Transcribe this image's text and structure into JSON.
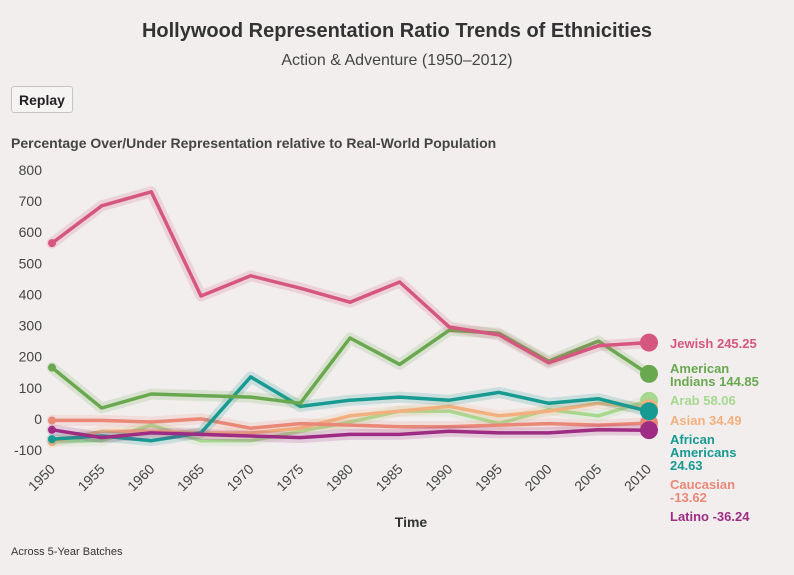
{
  "title": "Hollywood Representation Ratio Trends of Ethnicities",
  "subtitle": "Action & Adventure (1950–2012)",
  "replay_label": "Replay",
  "footnote": "Across 5-Year Batches",
  "chart_data": {
    "type": "line",
    "title": "Hollywood Representation Ratio Trends of Ethnicities",
    "subtitle": "Action & Adventure (1950–2012)",
    "xlabel": "Time",
    "ylabel": "Percentage Over/Under Representation relative to Real-World Population",
    "x": [
      1950,
      1955,
      1960,
      1965,
      1970,
      1975,
      1980,
      1985,
      1990,
      1995,
      2000,
      2005,
      2010
    ],
    "x_ticks": [
      "1950",
      "1955",
      "1960",
      "1965",
      "1970",
      "1975",
      "1980",
      "1985",
      "1990",
      "1995",
      "2000",
      "2005",
      "2010"
    ],
    "y_ticks": [
      "800",
      "700",
      "600",
      "500",
      "400",
      "300",
      "200",
      "100",
      "0",
      "-100"
    ],
    "ylim": [
      -100,
      800
    ],
    "grid": false,
    "legend": "end-of-line labels",
    "series": [
      {
        "name": "Arab",
        "value_label": "58.06",
        "color": "#a6d88f",
        "values": [
          -70,
          -70,
          -20,
          -70,
          -70,
          -40,
          -10,
          25,
          25,
          -15,
          30,
          10,
          58.06
        ]
      },
      {
        "name": "Asian",
        "value_label": "34.49",
        "color": "#f2b07e",
        "values": [
          -75,
          -40,
          -40,
          -45,
          -45,
          -30,
          10,
          25,
          40,
          10,
          25,
          50,
          34.49
        ]
      },
      {
        "name": "Caucasian",
        "value_label": "-13.62",
        "color": "#ea8878",
        "values": [
          -5,
          -5,
          -10,
          0,
          -30,
          -15,
          -20,
          -25,
          -25,
          -20,
          -15,
          -20,
          -13.62
        ]
      },
      {
        "name": "African Americans",
        "value_label": "24.63",
        "color": "#179a91",
        "values": [
          -65,
          -55,
          -70,
          -45,
          135,
          40,
          60,
          70,
          60,
          85,
          50,
          65,
          24.63
        ]
      },
      {
        "name": "Latino",
        "value_label": "-36.24",
        "color": "#9e2c83",
        "values": [
          -35,
          -60,
          -45,
          -50,
          -55,
          -60,
          -50,
          -50,
          -40,
          -45,
          -45,
          -35,
          -36.24
        ]
      },
      {
        "name": "American Indians",
        "value_label": "144.85",
        "color": "#6aa84f",
        "values": [
          165,
          35,
          80,
          75,
          70,
          50,
          260,
          175,
          285,
          275,
          185,
          250,
          144.85
        ]
      },
      {
        "name": "Jewish",
        "value_label": "245.25",
        "color": "#d5577f",
        "values": [
          565,
          685,
          730,
          395,
          460,
          420,
          375,
          440,
          295,
          270,
          180,
          235,
          245.25
        ]
      }
    ]
  }
}
